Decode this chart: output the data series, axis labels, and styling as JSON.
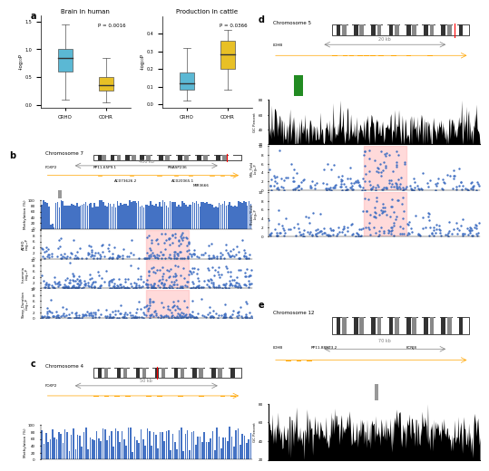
{
  "panel_a": {
    "title_left": "Brain in human",
    "title_right": "Production in cattle",
    "pval_left": "P = 0.0016",
    "pval_right": "P = 0.0366",
    "box_left_crho": {
      "median": 0.85,
      "q1": 0.6,
      "q3": 1.0,
      "whisker_low": 0.1,
      "whisker_high": 1.45
    },
    "box_left_cohr": {
      "median": 0.35,
      "q1": 0.25,
      "q3": 0.5,
      "whisker_low": 0.05,
      "whisker_high": 0.85
    },
    "box_right_crho": {
      "median": 0.12,
      "q1": 0.08,
      "q3": 0.18,
      "whisker_low": 0.02,
      "whisker_high": 0.32
    },
    "box_right_cohr": {
      "median": 0.28,
      "q1": 0.2,
      "q3": 0.36,
      "whisker_low": 0.08,
      "whisker_high": 0.42
    },
    "ylabel_left": "-log10P",
    "ylabel_right": "-log10P",
    "color_crho": "#5BB8D4",
    "color_cohr": "#E8C026",
    "chr7_label": "Chromosome 7",
    "chr4_label": "Chromosome 4",
    "chr5_label": "Chromosome 5",
    "chr12_label": "Chromosome 12"
  },
  "background_color": "#FFFFFF",
  "panel_label_color": "#000000",
  "red_label_bg": "#8B1A1A",
  "gene_track_bg": "#FFFACD",
  "cpg_island_bg": "#FFFACD",
  "methylation_color": "#4472C4",
  "gc_color": "#000000",
  "snp_color": "#4472C4",
  "highlight_color": "#FFB6B6",
  "cpg_green": "#228B22",
  "orange_gene": "#FFA500"
}
